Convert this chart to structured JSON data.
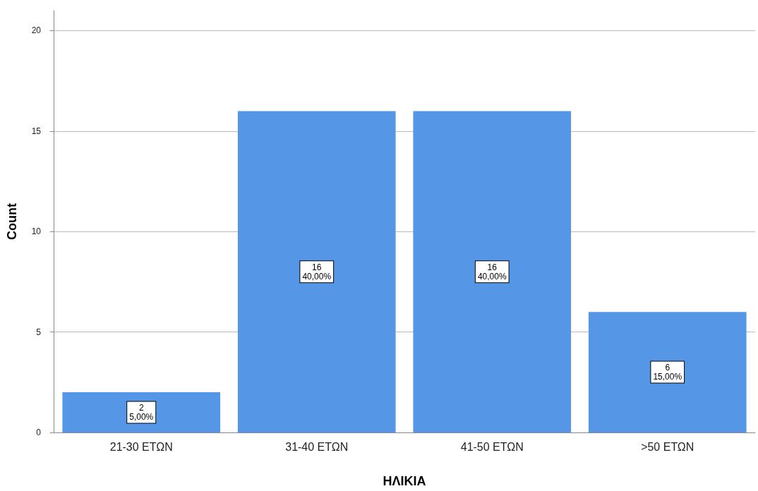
{
  "chart_data": {
    "type": "bar",
    "xlabel": "ΗΛΙΚΙΑ",
    "ylabel": "Count",
    "categories": [
      "21-30 ΕΤΩΝ",
      "31-40 ΕΤΩΝ",
      "41-50 ΕΤΩΝ",
      ">50 ΕΤΩΝ"
    ],
    "values": [
      2,
      16,
      16,
      6
    ],
    "value_labels": [
      "2\n5,00%",
      "16\n40,00%",
      "16\n40,00%",
      "6\n15,00%"
    ],
    "color": "#5596e6",
    "ylim": [
      0,
      21
    ],
    "yticks": [
      0,
      5,
      10,
      15,
      20
    ],
    "grid": "y"
  }
}
